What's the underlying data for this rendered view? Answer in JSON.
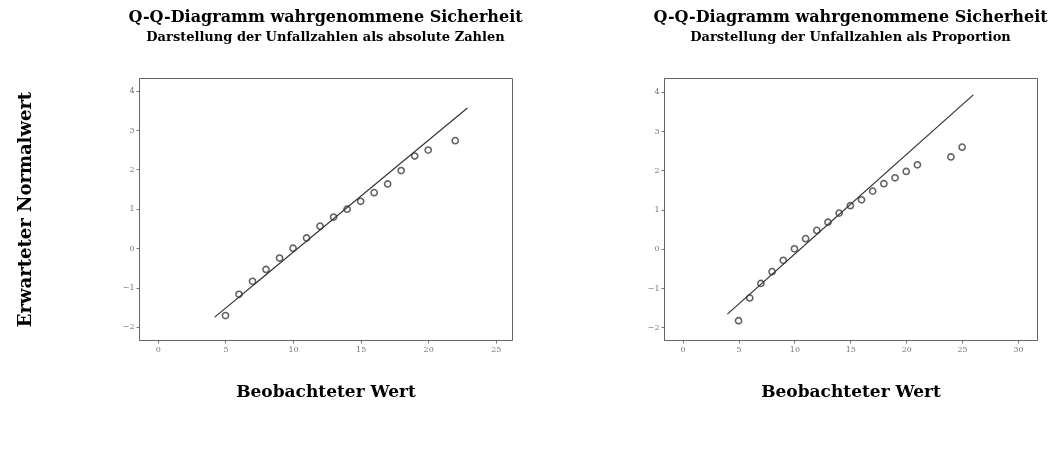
{
  "chart_data": [
    {
      "type": "scatter",
      "title": "Q-Q-Diagramm wahrgenommene Sicherheit",
      "subtitle": "Darstellung der Unfallzahlen als absolute Zahlen",
      "xlabel": "Beobachteter Wert",
      "ylabel": "Erwarteter Normalwert",
      "xlim": [
        -1.4,
        26.2
      ],
      "ylim": [
        -2.33,
        4.32
      ],
      "xticks": [
        0,
        5,
        10,
        15,
        20,
        25
      ],
      "yticks": [
        -2,
        -1,
        0,
        1,
        2,
        3,
        4
      ],
      "series": [
        {
          "type": "scatter",
          "marker": "circle",
          "color": "#222222",
          "x": [
            5,
            6,
            7,
            8,
            9,
            10,
            11,
            12,
            13,
            14,
            15,
            16,
            17,
            18,
            19,
            20,
            22
          ],
          "values": [
            -1.71,
            -1.17,
            -0.84,
            -0.54,
            -0.25,
            0,
            0.26,
            0.56,
            0.79,
            0.99,
            1.19,
            1.41,
            1.63,
            1.97,
            2.34,
            2.49,
            2.73
          ]
        },
        {
          "type": "line",
          "color": "#333333",
          "x": [
            4.2,
            22.9
          ],
          "values": [
            -1.75,
            3.56
          ]
        }
      ]
    },
    {
      "type": "scatter",
      "title": "Q-Q-Diagramm wahrgenommene Sicherheit",
      "subtitle": "Darstellung der Unfallzahlen als Proportion",
      "xlabel": "Beobachteter Wert",
      "xlim": [
        -1.67,
        31.7
      ],
      "ylim": [
        -2.32,
        4.35
      ],
      "xticks": [
        0,
        5,
        10,
        15,
        20,
        25,
        30
      ],
      "yticks": [
        -2,
        -1,
        0,
        1,
        2,
        3,
        4
      ],
      "series": [
        {
          "type": "scatter",
          "marker": "circle",
          "color": "#222222",
          "x": [
            5,
            6,
            7,
            8,
            9,
            10,
            11,
            12,
            13,
            14,
            15,
            16,
            17,
            18,
            19,
            20,
            21,
            24,
            25
          ],
          "values": [
            -1.83,
            -1.25,
            -0.88,
            -0.58,
            -0.29,
            0,
            0.26,
            0.47,
            0.68,
            0.91,
            1.1,
            1.25,
            1.47,
            1.66,
            1.81,
            1.97,
            2.14,
            2.34,
            2.59
          ]
        },
        {
          "type": "line",
          "color": "#333333",
          "x": [
            4.0,
            26.0
          ],
          "values": [
            -1.66,
            3.92
          ]
        }
      ]
    }
  ]
}
